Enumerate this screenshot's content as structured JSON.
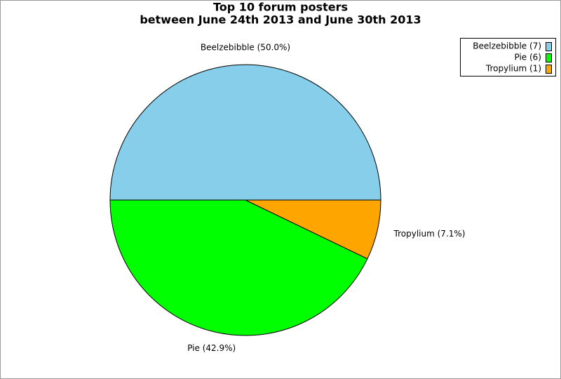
{
  "chart_data": {
    "type": "pie",
    "title": "Top 10 forum posters",
    "subtitle": "between June 24th 2013 and June 30th 2013",
    "categories": [
      "Beelzebibble",
      "Pie",
      "Tropylium"
    ],
    "values": [
      7,
      6,
      1
    ],
    "colors": [
      "#87ceeb",
      "#00ff00",
      "#ffa500"
    ],
    "slice_labels": [
      "Beelzebibble (50.0%)",
      "Pie (42.9%)",
      "Tropylium (7.1%)"
    ],
    "legend_labels": [
      "Beelzebibble (7)",
      "Pie (6)",
      "Tropylium (1)"
    ],
    "legend": "top-right"
  }
}
